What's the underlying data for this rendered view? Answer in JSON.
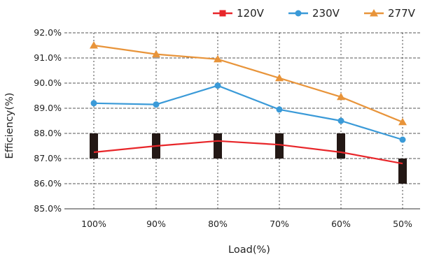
{
  "chart_data": {
    "type": "line",
    "categories": [
      "100%",
      "90%",
      "80%",
      "70%",
      "60%",
      "50%"
    ],
    "series": [
      {
        "name": "120V",
        "color": "#e8262a",
        "marker": "square",
        "values": [
          87.25,
          87.5,
          87.7,
          87.55,
          87.25,
          86.8
        ]
      },
      {
        "name": "230V",
        "color": "#3a9ad8",
        "marker": "circle",
        "values": [
          89.2,
          89.15,
          89.9,
          88.95,
          88.5,
          87.75
        ]
      },
      {
        "name": "277V",
        "color": "#e8943a",
        "marker": "triangle",
        "values": [
          91.5,
          91.15,
          90.95,
          90.2,
          89.45,
          88.45
        ]
      }
    ],
    "xlabel": "Load(%)",
    "ylabel": "Efficiency(%)",
    "ylim": [
      85.0,
      92.0
    ],
    "yticks": [
      "85.0%",
      "86.0%",
      "87.0%",
      "88.0%",
      "89.0%",
      "90.0%",
      "91.0%",
      "92.0%"
    ],
    "grid": "vertical dotted lines at categories, dashed horizontal at each y tick",
    "legend": "top-right",
    "annotation_bars": {
      "color": "#231815",
      "segments": [
        {
          "category": "100%",
          "from": 87.0,
          "to": 88.0
        },
        {
          "category": "90%",
          "from": 87.0,
          "to": 88.0
        },
        {
          "category": "80%",
          "from": 87.0,
          "to": 88.0
        },
        {
          "category": "70%",
          "from": 87.0,
          "to": 88.0
        },
        {
          "category": "60%",
          "from": 87.0,
          "to": 88.0
        },
        {
          "category": "50%",
          "from": 86.0,
          "to": 87.0
        }
      ]
    }
  }
}
